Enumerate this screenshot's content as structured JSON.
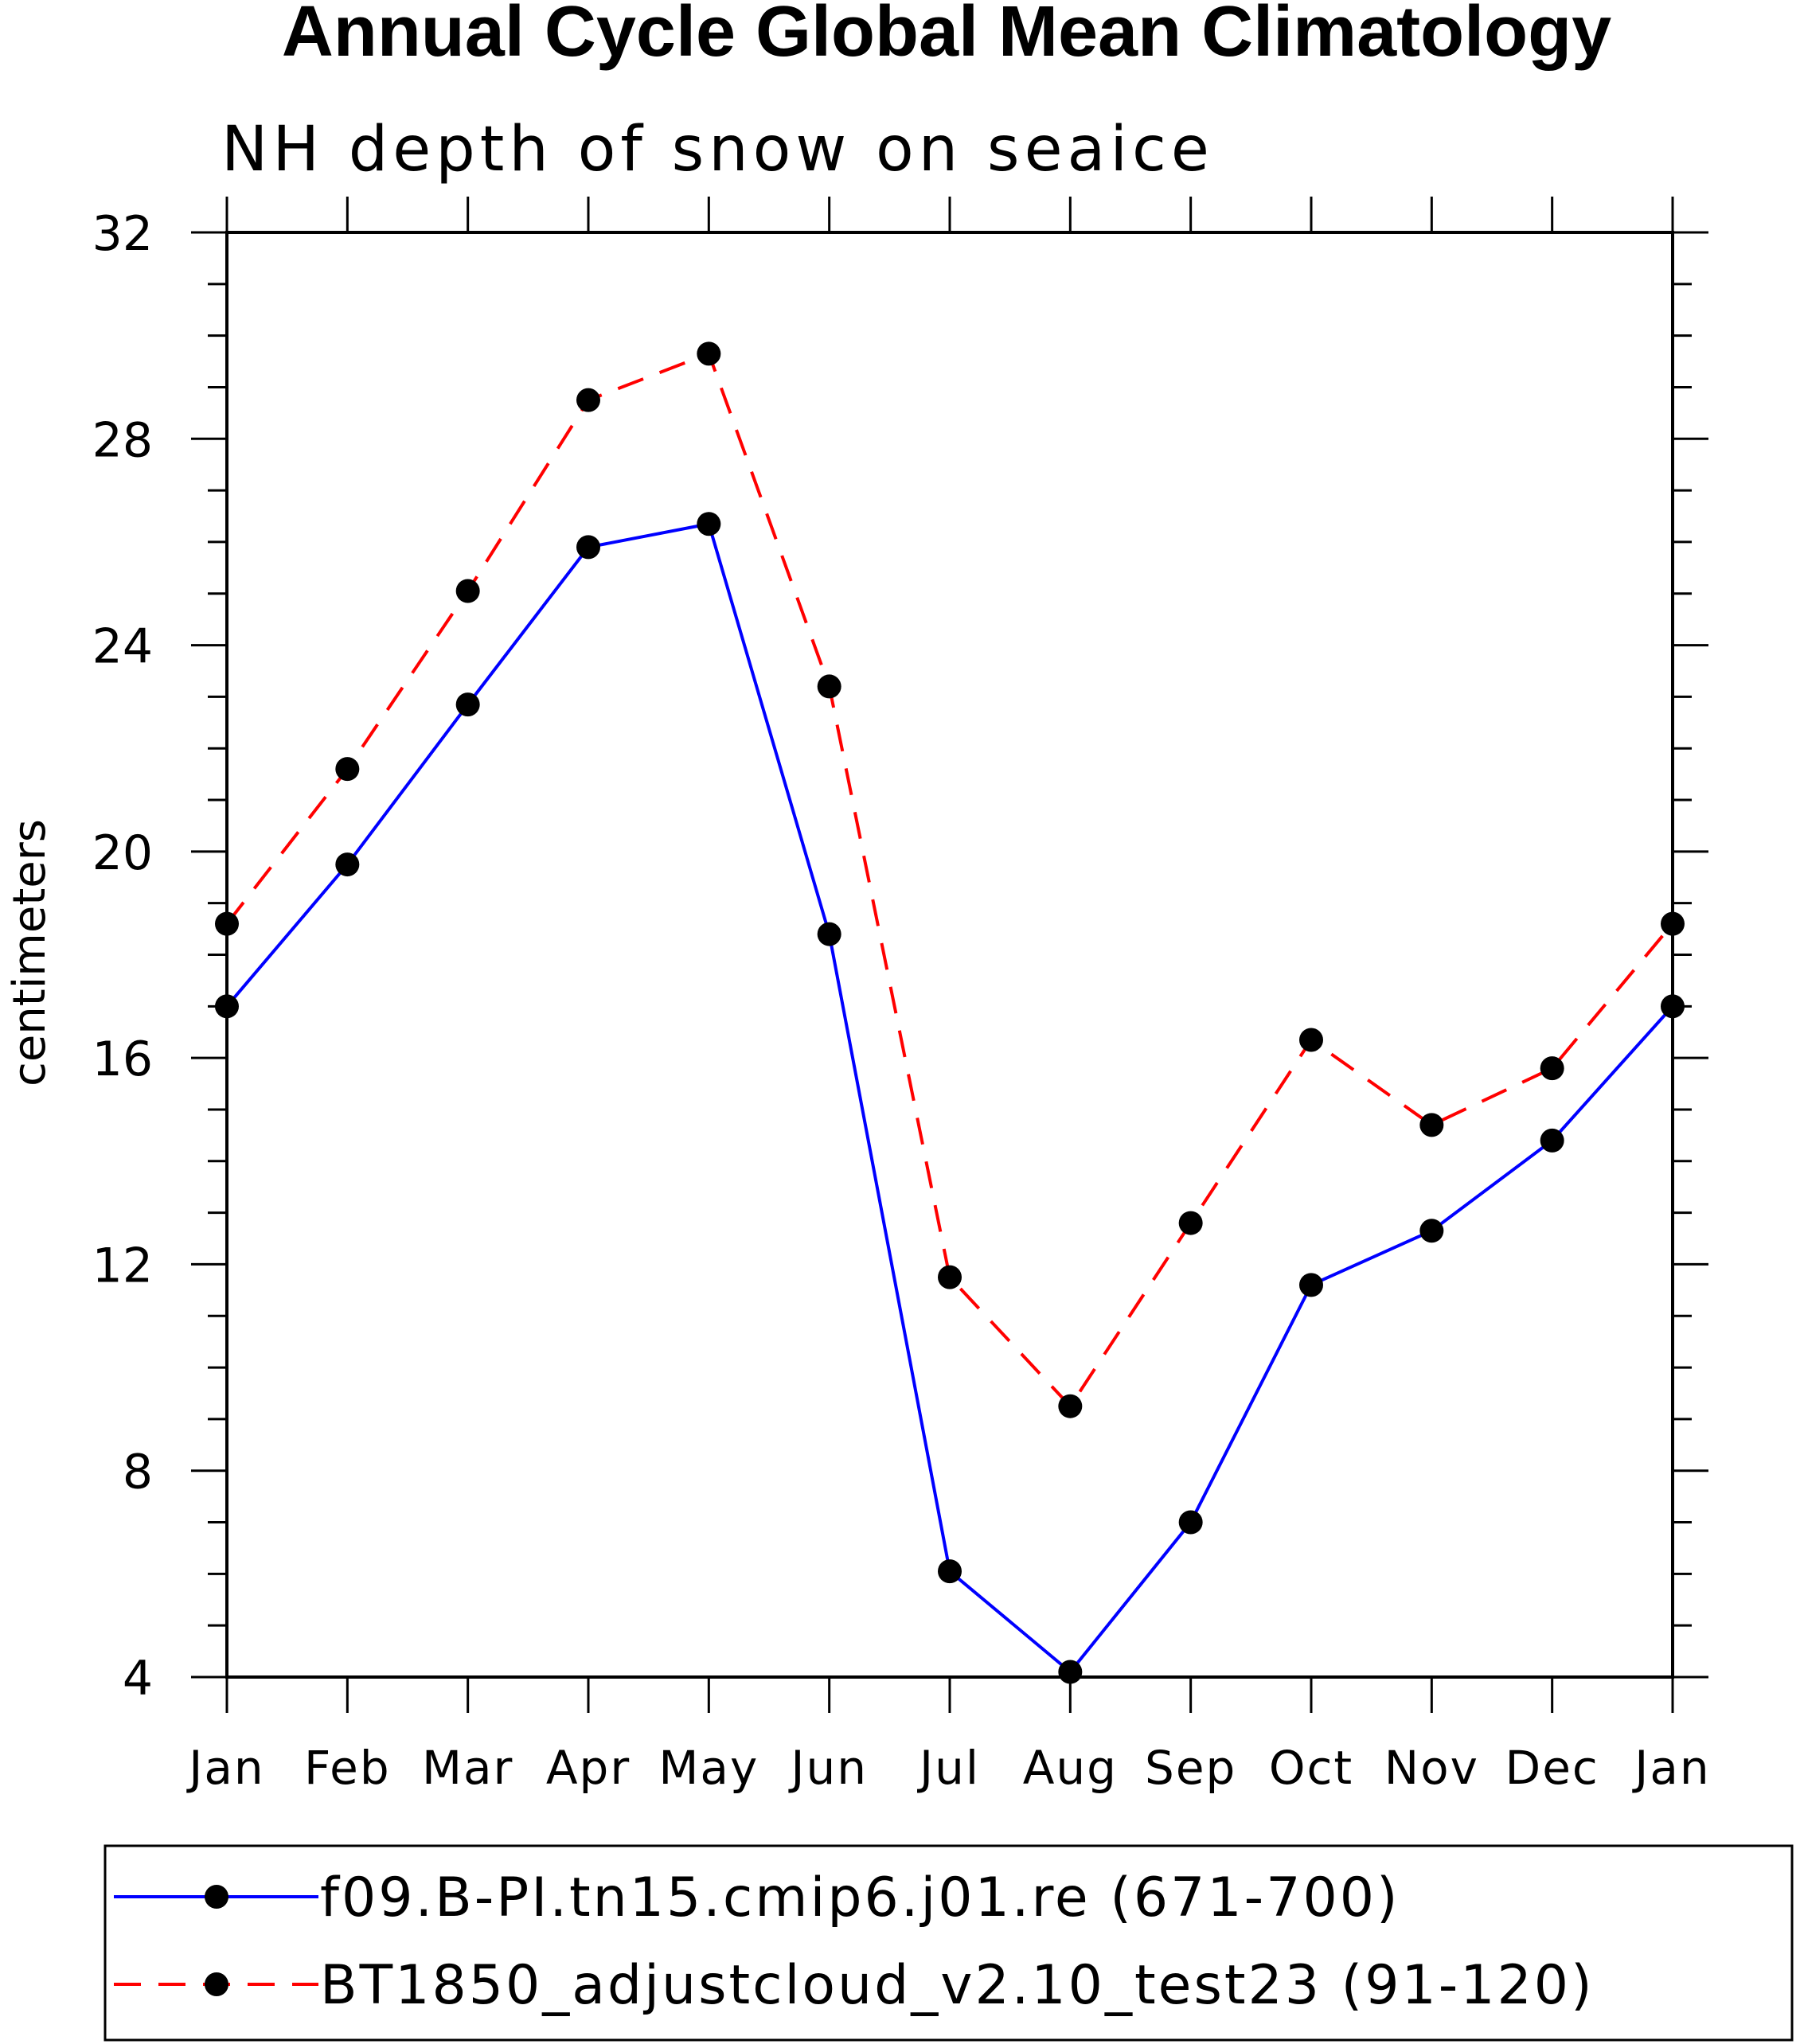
{
  "chart_data": {
    "type": "line",
    "title": "Annual Cycle Global Mean Climatology",
    "subtitle": "NH depth of snow on seaice",
    "xlabel": "",
    "ylabel": "centimeters",
    "ylim": [
      4,
      32
    ],
    "yticks": [
      4,
      8,
      12,
      16,
      20,
      24,
      28,
      32
    ],
    "categories": [
      "Jan",
      "Feb",
      "Mar",
      "Apr",
      "May",
      "Jun",
      "Jul",
      "Aug",
      "Sep",
      "Oct",
      "Nov",
      "Dec",
      "Jan"
    ],
    "legend_position": "bottom",
    "series": [
      {
        "name": "f09.B-PI.tn15.cmip6.j01.re (671-700)",
        "color": "#0000ff",
        "line_style": "solid",
        "values": [
          17.0,
          19.75,
          22.85,
          25.9,
          26.35,
          18.4,
          6.05,
          4.1,
          7.0,
          11.6,
          12.65,
          14.4,
          17.0
        ]
      },
      {
        "name": "BT1850_adjustcloud_v2.10_test23 (91-120)",
        "color": "#ff0000",
        "line_style": "dashed",
        "values": [
          18.6,
          21.6,
          25.05,
          28.75,
          29.65,
          23.2,
          11.75,
          9.25,
          12.8,
          16.35,
          14.7,
          15.8,
          18.6
        ]
      }
    ]
  }
}
